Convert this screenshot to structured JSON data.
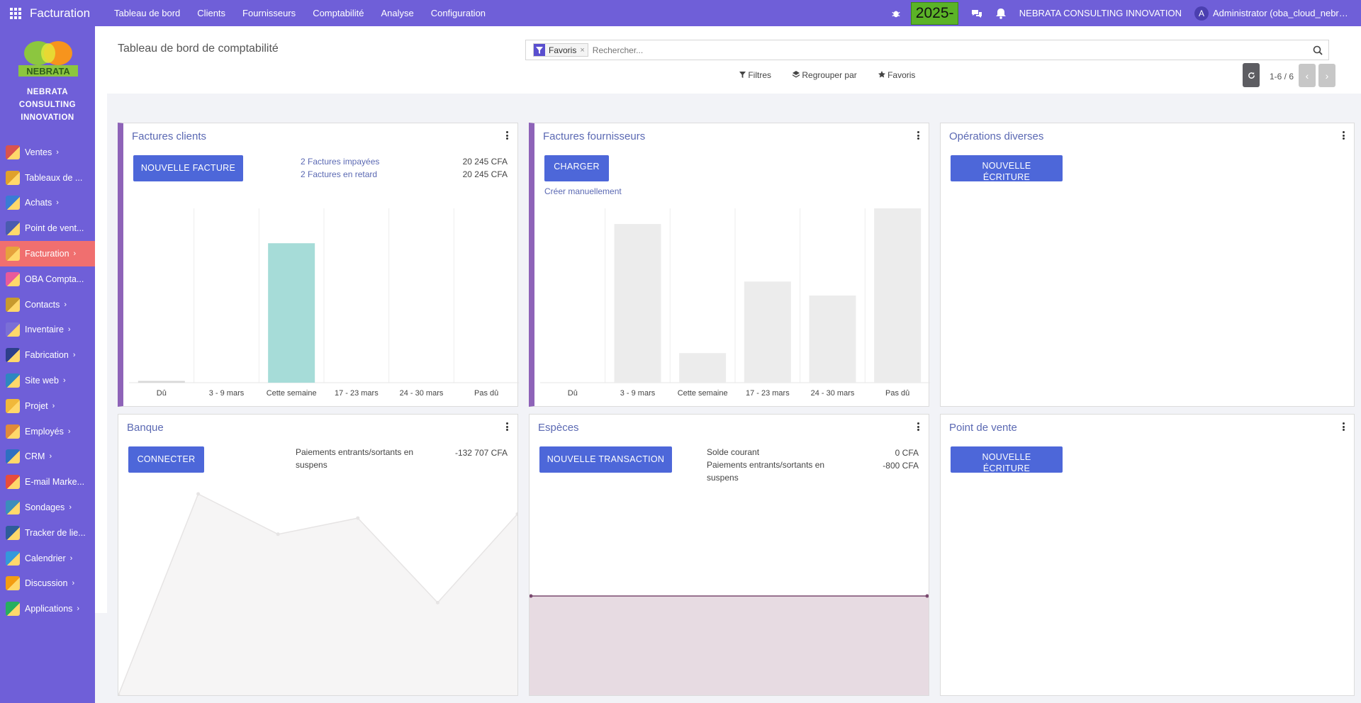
{
  "topbar": {
    "brand": "Facturation",
    "menu": [
      "Tableau de bord",
      "Clients",
      "Fournisseurs",
      "Comptabilité",
      "Analyse",
      "Configuration"
    ],
    "year_badge": "2025-",
    "company": "NEBRATA CONSULTING INNOVATION",
    "avatar_letter": "A",
    "user": "Administrator (oba_cloud_nebrata_pro..."
  },
  "sidebar": {
    "logo_text": "NEBRATA",
    "company_lines": [
      "NEBRATA",
      "CONSULTING",
      "INNOVATION"
    ],
    "items": [
      {
        "label": "Ventes",
        "chevron": "›",
        "color": "#d9534f"
      },
      {
        "label": "Tableaux de ...",
        "chevron": "",
        "color": "#e0a12b"
      },
      {
        "label": "Achats",
        "chevron": "›",
        "color": "#3a7bd5"
      },
      {
        "label": "Point de vent...",
        "chevron": "",
        "color": "#4a5bb0"
      },
      {
        "label": "Facturation",
        "chevron": "›",
        "color": "#e6a23c"
      },
      {
        "label": "OBA Compta...",
        "chevron": "",
        "color": "#e85a9b"
      },
      {
        "label": "Contacts",
        "chevron": "›",
        "color": "#c79a2e"
      },
      {
        "label": "Inventaire",
        "chevron": "›",
        "color": "#7a6fd6"
      },
      {
        "label": "Fabrication",
        "chevron": "›",
        "color": "#2d3f8a"
      },
      {
        "label": "Site web",
        "chevron": "›",
        "color": "#2e86c1"
      },
      {
        "label": "Projet",
        "chevron": "›",
        "color": "#f0b83a"
      },
      {
        "label": "Employés",
        "chevron": "›",
        "color": "#e08a3a"
      },
      {
        "label": "CRM",
        "chevron": "›",
        "color": "#2e6fc1"
      },
      {
        "label": "E-mail Marke...",
        "chevron": "",
        "color": "#e74c3c"
      },
      {
        "label": "Sondages",
        "chevron": "›",
        "color": "#3c8dbc"
      },
      {
        "label": "Tracker de lie...",
        "chevron": "",
        "color": "#2e5c9a"
      },
      {
        "label": "Calendrier",
        "chevron": "›",
        "color": "#3498db"
      },
      {
        "label": "Discussion",
        "chevron": "›",
        "color": "#f39c12"
      },
      {
        "label": "Applications",
        "chevron": "›",
        "color": "#27ae60"
      }
    ]
  },
  "control": {
    "title": "Tableau de bord de comptabilité",
    "facet": "Favoris",
    "search_placeholder": "Rechercher...",
    "filters": "Filtres",
    "group_by": "Regrouper par",
    "favorites": "Favoris",
    "pager": "1-6 / 6"
  },
  "cards": {
    "clients": {
      "title": "Factures clients",
      "button": "NOUVELLE FACTURE",
      "rows": [
        {
          "label": "2 Factures impayées",
          "value": "20 245 CFA"
        },
        {
          "label": "2 Factures en retard",
          "value": "20 245 CFA"
        }
      ]
    },
    "fournisseurs": {
      "title": "Factures fournisseurs",
      "button": "CHARGER",
      "link": "Créer manuellement"
    },
    "operations": {
      "title": "Opérations diverses",
      "button": "NOUVELLE ÉCRITURE"
    },
    "banque": {
      "title": "Banque",
      "button": "CONNECTER",
      "row_label": "Paiements entrants/sortants en suspens",
      "row_value": "-132 707 CFA"
    },
    "especes": {
      "title": "Espèces",
      "button": "NOUVELLE TRANSACTION",
      "rows": [
        {
          "label": "Solde courant",
          "value": "0 CFA"
        },
        {
          "label": "Paiements entrants/sortants en suspens",
          "value": "-800 CFA"
        }
      ]
    },
    "pdv": {
      "title": "Point de vente",
      "button": "NOUVELLE ÉCRITURE"
    }
  },
  "chart_data": [
    {
      "type": "bar",
      "categories": [
        "Dû",
        "3 - 9 mars",
        "Cette semaine",
        "17 - 23 mars",
        "24 - 30 mars",
        "Pas dû"
      ],
      "values": [
        1,
        0,
        80,
        0,
        0,
        0
      ],
      "ylim": [
        0,
        100
      ],
      "colors": [
        "#d8d8d8",
        "#d8d8d8",
        "#a6dcd8",
        "#d8d8d8",
        "#d8d8d8",
        "#d8d8d8"
      ]
    },
    {
      "type": "bar",
      "categories": [
        "Dû",
        "3 - 9 mars",
        "Cette semaine",
        "17 - 23 mars",
        "24 - 30 mars",
        "Pas dû"
      ],
      "values": [
        0,
        91,
        17,
        58,
        50,
        100
      ],
      "ylim": [
        0,
        100
      ],
      "colors": [
        "#ececec",
        "#ececec",
        "#ececec",
        "#ececec",
        "#ececec",
        "#ececec"
      ]
    },
    {
      "type": "area",
      "x": [
        0,
        1,
        2,
        3,
        4,
        5
      ],
      "values": [
        0,
        100,
        80,
        88,
        46,
        90
      ],
      "ylim": [
        0,
        100
      ],
      "color": "#f6f5f5",
      "stroke": "#e6e4e4"
    },
    {
      "type": "area",
      "x": [
        0,
        1
      ],
      "values": [
        50,
        50
      ],
      "ylim": [
        0,
        100
      ],
      "color": "#e7dbe2",
      "stroke": "#7a4a6f"
    }
  ]
}
